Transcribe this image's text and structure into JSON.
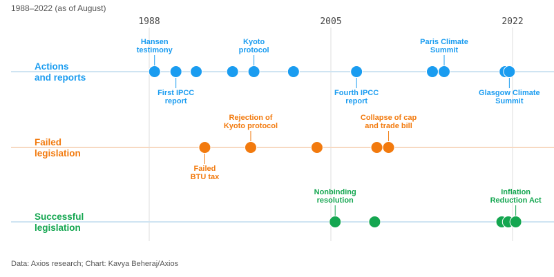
{
  "chart_data": {
    "type": "scatter",
    "subtitle": "1988–2022 (as of August)",
    "source": "Data: Axios research; Chart: Kavya Beheraj/Axios",
    "x_ticks": [
      "1988",
      "2005",
      "2022"
    ],
    "x_tick_values": [
      1988,
      2005,
      2022
    ],
    "xlim": [
      1988,
      2022
    ],
    "grid": "vertical lines at tick years",
    "series": [
      {
        "name": "Actions and reports",
        "name_lines": [
          "Actions",
          "and reports"
        ],
        "color": "#1a9cf0",
        "line_color": "#cfe4f2",
        "points": [
          1988.5,
          1990.5,
          1992.4,
          1995.8,
          1997.8,
          2001.5,
          2007.4,
          2014.5,
          2015.6,
          2021.3,
          2021.7
        ],
        "annotations": [
          {
            "text_lines": [
              "Hansen",
              "testimony"
            ],
            "x": 1988.5,
            "position": "above"
          },
          {
            "text_lines": [
              "First IPCC",
              "report"
            ],
            "x": 1990.5,
            "position": "below"
          },
          {
            "text_lines": [
              "Kyoto",
              "protocol"
            ],
            "x": 1997.8,
            "position": "above"
          },
          {
            "text_lines": [
              "Fourth IPCC",
              "report"
            ],
            "x": 2007.4,
            "position": "below"
          },
          {
            "text_lines": [
              "Paris Climate",
              "Summit"
            ],
            "x": 2015.6,
            "position": "above"
          },
          {
            "text_lines": [
              "Glasgow Climate",
              "Summit"
            ],
            "x": 2021.7,
            "position": "below"
          }
        ]
      },
      {
        "name": "Failed legislation",
        "name_lines": [
          "Failed",
          "legislation"
        ],
        "color": "#f27a0e",
        "line_color": "#f7d9c2",
        "points": [
          1993.2,
          1997.5,
          2003.7,
          2009.3,
          2010.4
        ],
        "annotations": [
          {
            "text_lines": [
              "Failed",
              "BTU tax"
            ],
            "x": 1993.2,
            "position": "below"
          },
          {
            "text_lines": [
              "Rejection of",
              "Kyoto protocol"
            ],
            "x": 1997.5,
            "position": "above"
          },
          {
            "text_lines": [
              "Collapse of cap",
              "and trade bill"
            ],
            "x": 2010.4,
            "position": "above"
          }
        ]
      },
      {
        "name": "Successful legislation",
        "name_lines": [
          "Successful",
          "legislation"
        ],
        "color": "#14a650",
        "line_color": "#cfe4f2",
        "points": [
          2005.4,
          2009.1,
          2021.0,
          2021.6,
          2022.3
        ],
        "annotations": [
          {
            "text_lines": [
              "Nonbinding",
              "resolution"
            ],
            "x": 2005.4,
            "position": "above"
          },
          {
            "text_lines": [
              "Inflation",
              "Reduction Act"
            ],
            "x": 2022.3,
            "position": "above"
          }
        ]
      }
    ]
  }
}
